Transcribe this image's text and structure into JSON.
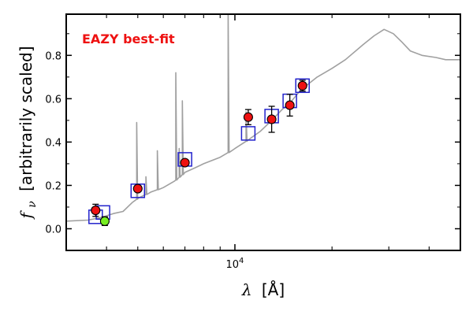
{
  "chart_data": {
    "type": "scatter",
    "title": "",
    "annotation": {
      "text": "EAZY best-fit",
      "color": "#ee1111"
    },
    "xlabel_symbol": "λ",
    "xlabel_unit": "[Å]",
    "ylabel_symbol": "f",
    "ylabel_sub": "ν",
    "ylabel_text": "[arbitrarily scaled]",
    "x_scale": "log",
    "xlim": [
      3000,
      50000
    ],
    "ylim": [
      -0.1,
      0.99
    ],
    "x_tick_labels": [
      {
        "value": 10000,
        "base": "10",
        "exp": "4"
      }
    ],
    "y_ticks": [
      0.0,
      0.2,
      0.4,
      0.6,
      0.8
    ],
    "y_tick_labels": [
      "0.0",
      "0.2",
      "0.4",
      "0.6",
      "0.8"
    ],
    "grid": false,
    "series": [
      {
        "kind": "line",
        "color": "#a0a0a0",
        "points": [
          [
            3000,
            0.035
          ],
          [
            3500,
            0.04
          ],
          [
            3800,
            0.05
          ],
          [
            4000,
            0.06
          ],
          [
            4200,
            0.07
          ],
          [
            4500,
            0.08
          ],
          [
            4800,
            0.12
          ],
          [
            5000,
            0.14
          ],
          [
            5500,
            0.17
          ],
          [
            6000,
            0.19
          ],
          [
            6500,
            0.22
          ],
          [
            7000,
            0.26
          ],
          [
            7500,
            0.28
          ],
          [
            8000,
            0.3
          ],
          [
            9000,
            0.33
          ],
          [
            10000,
            0.37
          ],
          [
            11000,
            0.41
          ],
          [
            12000,
            0.45
          ],
          [
            13000,
            0.5
          ],
          [
            14000,
            0.55
          ],
          [
            15000,
            0.59
          ],
          [
            16000,
            0.64
          ],
          [
            18000,
            0.7
          ],
          [
            20000,
            0.74
          ],
          [
            22000,
            0.78
          ],
          [
            25000,
            0.85
          ],
          [
            27000,
            0.89
          ],
          [
            29000,
            0.92
          ],
          [
            31000,
            0.9
          ],
          [
            33000,
            0.86
          ],
          [
            35000,
            0.82
          ],
          [
            38000,
            0.8
          ],
          [
            42000,
            0.79
          ],
          [
            45000,
            0.78
          ],
          [
            50000,
            0.78
          ]
        ],
        "emission_lines": [
          {
            "x": 4960,
            "peak": 0.49
          },
          {
            "x": 5300,
            "peak": 0.24
          },
          {
            "x": 5750,
            "peak": 0.36
          },
          {
            "x": 6560,
            "peak": 0.72
          },
          {
            "x": 6720,
            "peak": 0.37
          },
          {
            "x": 6870,
            "peak": 0.59
          },
          {
            "x": 9530,
            "peak": 0.99
          },
          {
            "x": 10830,
            "peak": 0.54
          }
        ]
      },
      {
        "kind": "model_photometry",
        "marker": "open-square",
        "color": "#2222cc",
        "points": [
          [
            3700,
            0.055
          ],
          [
            3900,
            0.075
          ],
          [
            5000,
            0.175
          ],
          [
            7000,
            0.32
          ],
          [
            11000,
            0.44
          ],
          [
            13000,
            0.52
          ],
          [
            14800,
            0.59
          ],
          [
            16200,
            0.66
          ]
        ]
      },
      {
        "kind": "observed_photometry",
        "marker": "filled-circle",
        "color": "#ee1111",
        "points": [
          {
            "x": 3700,
            "y": 0.085,
            "err": 0.028
          },
          {
            "x": 5000,
            "y": 0.185,
            "err": 0.012
          },
          {
            "x": 7000,
            "y": 0.305,
            "err": 0.012
          },
          {
            "x": 11000,
            "y": 0.515,
            "err": 0.035
          },
          {
            "x": 13000,
            "y": 0.505,
            "err": 0.06
          },
          {
            "x": 14800,
            "y": 0.57,
            "err": 0.05
          },
          {
            "x": 16200,
            "y": 0.66,
            "err": 0.025
          }
        ]
      },
      {
        "kind": "observed_photometry",
        "marker": "filled-circle",
        "color": "#77ee22",
        "points": [
          {
            "x": 3950,
            "y": 0.035,
            "err": 0.02
          }
        ]
      }
    ]
  }
}
